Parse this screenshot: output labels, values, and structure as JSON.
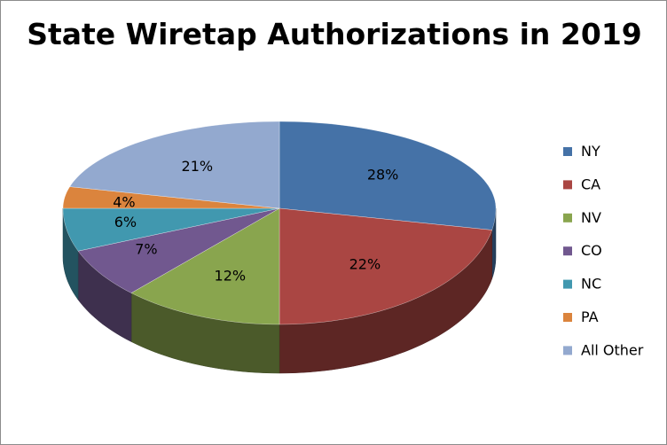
{
  "chart_data": {
    "type": "pie",
    "style": "3d",
    "title": "State Wiretap Authorizations in 2019",
    "legend_position": "right",
    "slices": [
      {
        "label": "NY",
        "value": 28,
        "data_label": "28%",
        "color": "#4572A7"
      },
      {
        "label": "CA",
        "value": 22,
        "data_label": "22%",
        "color": "#AA4643"
      },
      {
        "label": "NV",
        "value": 12,
        "data_label": "12%",
        "color": "#89A54E"
      },
      {
        "label": "CO",
        "value": 7,
        "data_label": "7%",
        "color": "#71588F"
      },
      {
        "label": "NC",
        "value": 6,
        "data_label": "6%",
        "color": "#4198AF"
      },
      {
        "label": "PA",
        "value": 4,
        "data_label": "4%",
        "color": "#DB843D"
      },
      {
        "label": "All Other",
        "value": 21,
        "data_label": "21%",
        "color": "#93A9CF"
      }
    ]
  }
}
